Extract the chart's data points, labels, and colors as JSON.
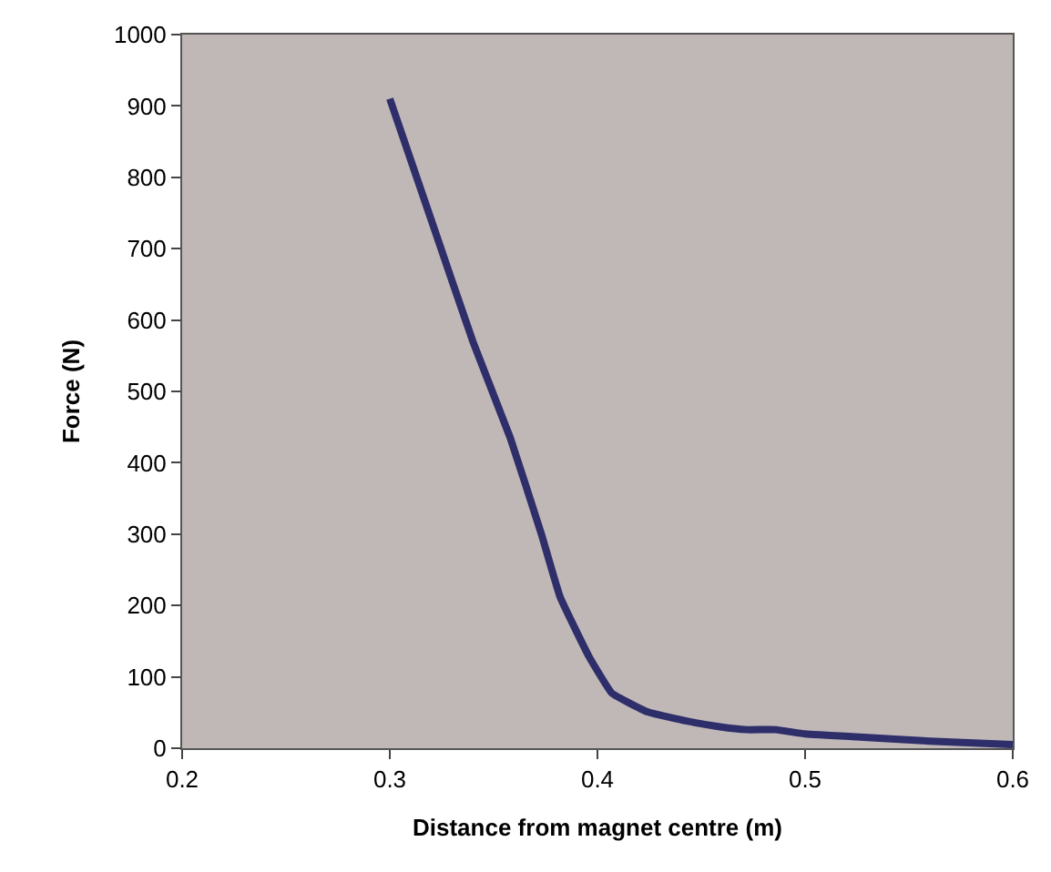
{
  "chart_data": {
    "type": "line",
    "xlabel": "Distance from magnet centre (m)",
    "ylabel": "Force (N)",
    "x": [
      0.3,
      0.32,
      0.34,
      0.358,
      0.373,
      0.382,
      0.396,
      0.407,
      0.424,
      0.443,
      0.459,
      0.472,
      0.486,
      0.5,
      0.53,
      0.56,
      0.6
    ],
    "series": [
      {
        "color": "#2e2e6b",
        "values": [
          910,
          740,
          570,
          435,
          300,
          212,
          128,
          77,
          51,
          38,
          30,
          26,
          26,
          20,
          15,
          10,
          5
        ]
      }
    ],
    "xlim": [
      0.2,
      0.6
    ],
    "xticks": [
      0.2,
      0.3,
      0.4,
      0.5,
      0.6
    ],
    "ylim": [
      0,
      1000
    ],
    "yticks": [
      0,
      100,
      200,
      300,
      400,
      500,
      600,
      700,
      800,
      900,
      1000
    ],
    "grid": false,
    "legend": false
  }
}
